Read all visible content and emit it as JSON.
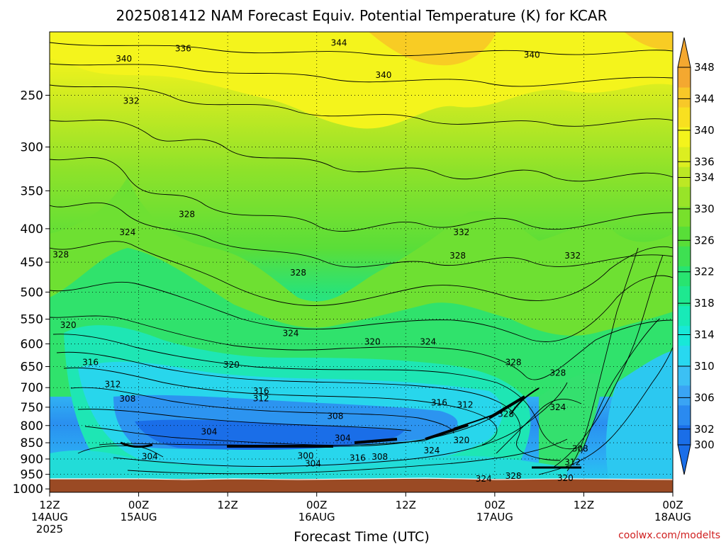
{
  "chart_data": {
    "type": "heatmap",
    "title": "2025081412 NAM Forecast Equiv. Potential Temperature (K) for KCAR",
    "xlabel": "Forecast Time (UTC)",
    "ylabel": "",
    "credit": "coolwx.com/modelts",
    "x_ticks": [
      {
        "hour": 0,
        "l1": "12Z",
        "l2": "14AUG",
        "l3": "2025"
      },
      {
        "hour": 12,
        "l1": "00Z",
        "l2": "15AUG",
        "l3": ""
      },
      {
        "hour": 24,
        "l1": "12Z",
        "l2": "",
        "l3": ""
      },
      {
        "hour": 36,
        "l1": "00Z",
        "l2": "16AUG",
        "l3": ""
      },
      {
        "hour": 48,
        "l1": "12Z",
        "l2": "",
        "l3": ""
      },
      {
        "hour": 60,
        "l1": "00Z",
        "l2": "17AUG",
        "l3": ""
      },
      {
        "hour": 72,
        "l1": "12Z",
        "l2": "",
        "l3": ""
      },
      {
        "hour": 84,
        "l1": "00Z",
        "l2": "18AUG",
        "l3": ""
      }
    ],
    "xlim": [
      0,
      84
    ],
    "y_ticks": [
      250,
      300,
      350,
      400,
      450,
      500,
      550,
      600,
      650,
      700,
      750,
      800,
      850,
      900,
      950,
      1000
    ],
    "ylim": [
      200,
      1012
    ],
    "y_scale": "log",
    "y_reversed": true,
    "grid": true,
    "colorbar_levels": [
      300,
      302,
      304,
      306,
      308,
      310,
      312,
      314,
      316,
      318,
      320,
      322,
      324,
      326,
      328,
      330,
      332,
      334,
      336,
      338,
      340,
      342,
      344,
      346,
      348
    ],
    "colorbar_labels": [
      348,
      344,
      340,
      336,
      334,
      330,
      326,
      322,
      318,
      314,
      310,
      306,
      302,
      300
    ],
    "colors": [
      "#1a6ee8",
      "#2a8af0",
      "#3aa4f4",
      "#3cc0f4",
      "#28d8f0",
      "#18e8d8",
      "#18eab8",
      "#1ee890",
      "#28e470",
      "#3ee052",
      "#58de38",
      "#78e02c",
      "#98e428",
      "#bce824",
      "#dcee20",
      "#f4f41c",
      "#f8e020",
      "#f8c828",
      "#f4a830"
    ],
    "ground_color": "#9a4a24",
    "contour_labels": [
      {
        "text": "336",
        "x": 18,
        "p": 212
      },
      {
        "text": "344",
        "x": 39,
        "p": 208
      },
      {
        "text": "340",
        "x": 10,
        "p": 220
      },
      {
        "text": "340",
        "x": 65,
        "p": 217
      },
      {
        "text": "340",
        "x": 45,
        "p": 233
      },
      {
        "text": "332",
        "x": 11,
        "p": 255
      },
      {
        "text": "328",
        "x": 18.5,
        "p": 380
      },
      {
        "text": "324",
        "x": 10.5,
        "p": 405
      },
      {
        "text": "328",
        "x": 1.5,
        "p": 438
      },
      {
        "text": "328",
        "x": 33.5,
        "p": 467
      },
      {
        "text": "332",
        "x": 55.5,
        "p": 405
      },
      {
        "text": "328",
        "x": 55,
        "p": 440
      },
      {
        "text": "332",
        "x": 70.5,
        "p": 440
      },
      {
        "text": "320",
        "x": 2.5,
        "p": 562
      },
      {
        "text": "324",
        "x": 32.5,
        "p": 578
      },
      {
        "text": "320",
        "x": 43.5,
        "p": 596
      },
      {
        "text": "324",
        "x": 51,
        "p": 596
      },
      {
        "text": "316",
        "x": 5.5,
        "p": 640
      },
      {
        "text": "320",
        "x": 24.5,
        "p": 646
      },
      {
        "text": "328",
        "x": 62.5,
        "p": 640
      },
      {
        "text": "328",
        "x": 68.5,
        "p": 665
      },
      {
        "text": "312",
        "x": 8.5,
        "p": 692
      },
      {
        "text": "316",
        "x": 28.5,
        "p": 708
      },
      {
        "text": "312",
        "x": 28.5,
        "p": 727
      },
      {
        "text": "308",
        "x": 10.5,
        "p": 728
      },
      {
        "text": "316",
        "x": 52.5,
        "p": 738
      },
      {
        "text": "312",
        "x": 56,
        "p": 744
      },
      {
        "text": "324",
        "x": 68.5,
        "p": 750
      },
      {
        "text": "308",
        "x": 38.5,
        "p": 774
      },
      {
        "text": "328",
        "x": 61.5,
        "p": 768
      },
      {
        "text": "304",
        "x": 21.5,
        "p": 818
      },
      {
        "text": "304",
        "x": 39.5,
        "p": 836
      },
      {
        "text": "320",
        "x": 55.5,
        "p": 842
      },
      {
        "text": "324",
        "x": 51.5,
        "p": 873
      },
      {
        "text": "308",
        "x": 71.5,
        "p": 868
      },
      {
        "text": "304",
        "x": 13.5,
        "p": 892
      },
      {
        "text": "300",
        "x": 34.5,
        "p": 890
      },
      {
        "text": "304",
        "x": 35.5,
        "p": 915
      },
      {
        "text": "316",
        "x": 41.5,
        "p": 897
      },
      {
        "text": "308",
        "x": 44.5,
        "p": 893
      },
      {
        "text": "312",
        "x": 70.5,
        "p": 910
      },
      {
        "text": "328",
        "x": 62.5,
        "p": 955
      },
      {
        "text": "324",
        "x": 58.5,
        "p": 965
      },
      {
        "text": "320",
        "x": 69.5,
        "p": 963
      }
    ]
  }
}
